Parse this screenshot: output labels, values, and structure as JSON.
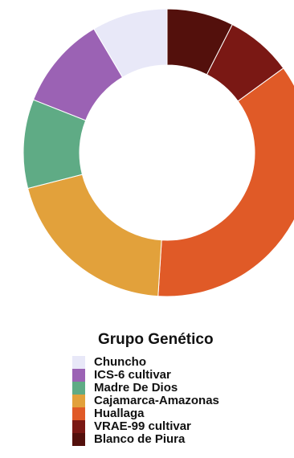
{
  "chart_data": {
    "type": "pie",
    "donut": true,
    "title": "",
    "legend_title": "Grupo Genético",
    "legend_position": "bottom",
    "categories": [
      "Chuncho",
      "ICS-6 cultivar",
      "Madre De Dios",
      "Cajamarca-Amazonas",
      "Huallaga",
      "VRAE-99 cultivar",
      "Blanco de Piura"
    ],
    "values": [
      8.5,
      10.5,
      10.0,
      20.0,
      36.0,
      7.5,
      7.5
    ],
    "colors": [
      "#e8e8f8",
      "#9b62b4",
      "#5fab85",
      "#e2a13b",
      "#e05a27",
      "#7a1814",
      "#53100c"
    ],
    "start_category": "Blanco de Piura",
    "start_angle_deg": 0
  }
}
